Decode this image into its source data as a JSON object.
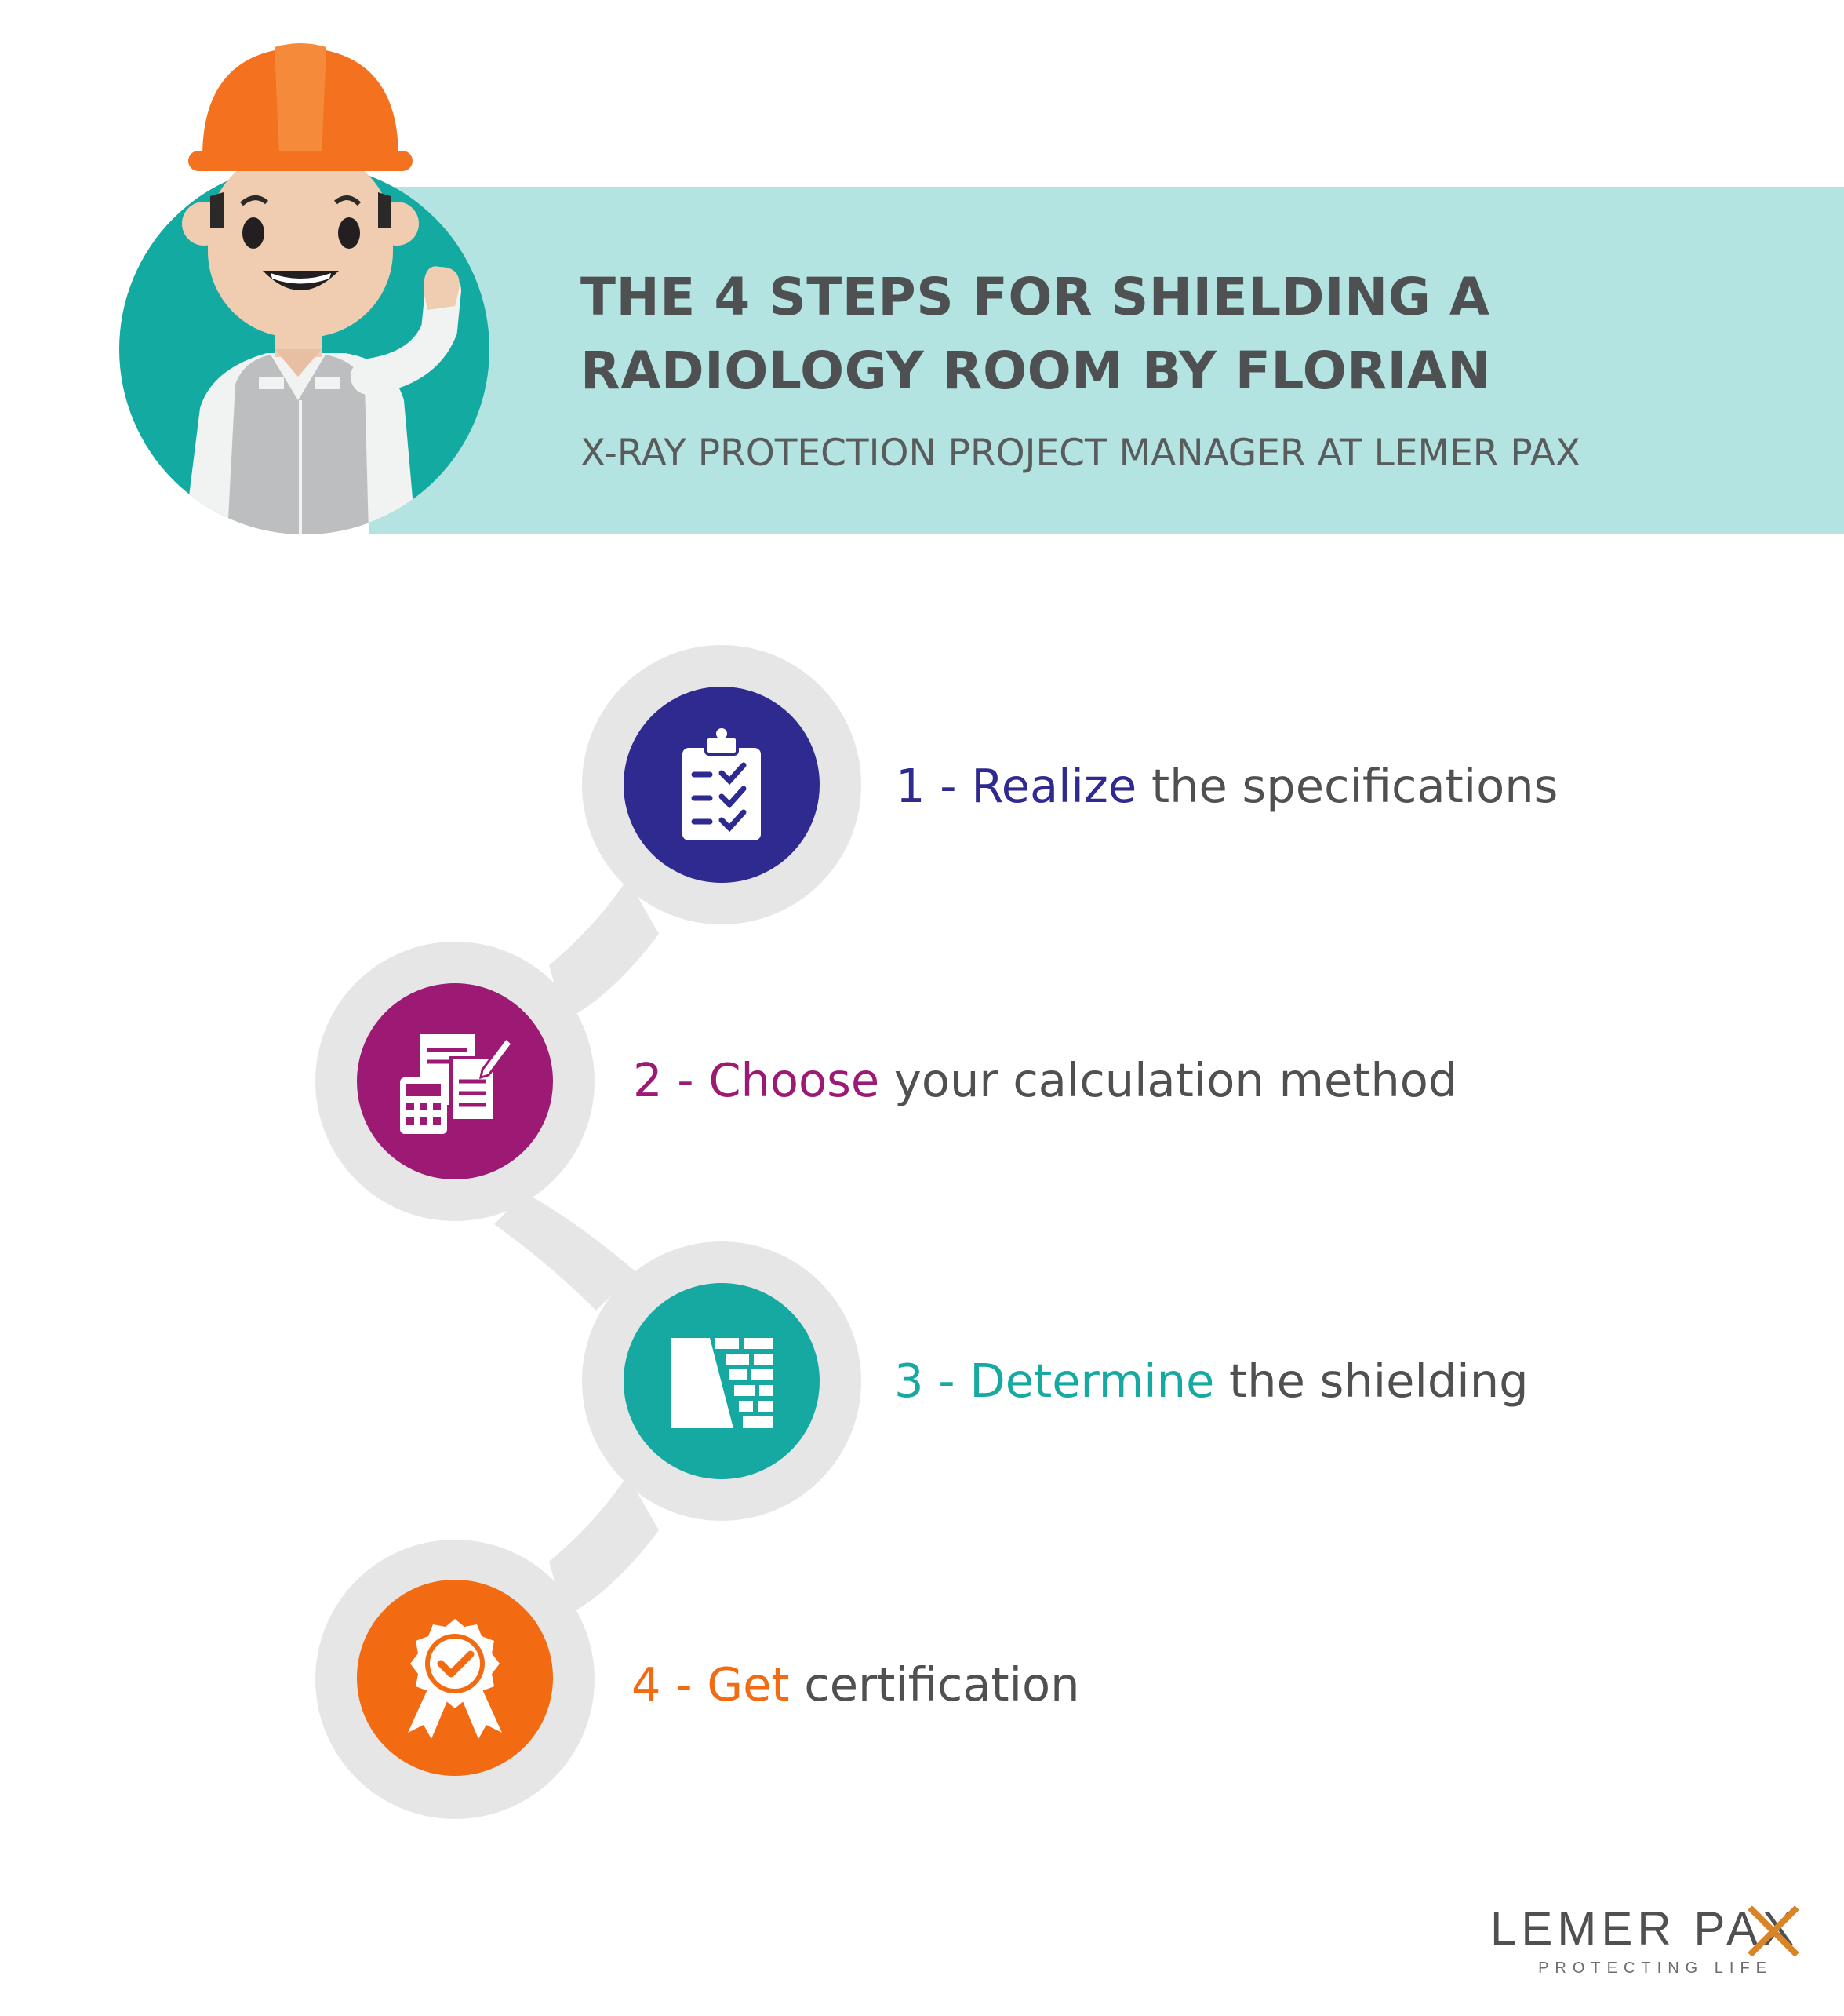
{
  "header": {
    "title_line1": "THE 4 STEPS FOR SHIELDING A",
    "title_line2": "RADIOLOGY ROOM BY FLORIAN",
    "subtitle": "X-RAY PROTECTION PROJECT MANAGER AT LEMER PAX"
  },
  "steps": [
    {
      "prefix": "1 - ",
      "keyword": "Realize",
      "rest": " the specifications",
      "color": "#2e2a8f",
      "icon": "clipboard-checklist-icon"
    },
    {
      "prefix": "2 - ",
      "keyword": "Choose",
      "rest": " your calculation method",
      "color": "#9c1a74",
      "icon": "calculator-documents-icon"
    },
    {
      "prefix": "3 - ",
      "keyword": "Determine",
      "rest": " the shielding",
      "color": "#15a9a2",
      "icon": "brick-wall-icon"
    },
    {
      "prefix": "4 - ",
      "keyword": "Get",
      "rest": " certification",
      "color": "#f26a12",
      "icon": "award-rosette-icon"
    }
  ],
  "logo": {
    "brand": "LEMER PAX",
    "tagline": "PROTECTING LIFE"
  },
  "colors": {
    "banner": "#b3e4e1",
    "heading_text": "#4f5052",
    "path": "#e6e6e6",
    "logo_accent": "#d8842a"
  }
}
